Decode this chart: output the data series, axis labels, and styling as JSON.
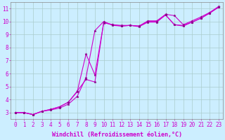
{
  "bg_color": "#cceeff",
  "grid_color": "#aacccc",
  "line_color": "#cc00cc",
  "marker_color": "#880088",
  "xlabel": "Windchill (Refroidissement éolien,°C)",
  "ylabel_ticks": [
    3,
    4,
    5,
    6,
    7,
    8,
    9,
    10,
    11
  ],
  "xlim": [
    -0.5,
    23.5
  ],
  "ylim": [
    2.5,
    11.5
  ],
  "xtick_labels": [
    "0",
    "1",
    "2",
    "3",
    "4",
    "5",
    "6",
    "7",
    "8",
    "9",
    "10",
    "11",
    "12",
    "13",
    "14",
    "15",
    "16",
    "17",
    "18",
    "19",
    "20",
    "21",
    "22",
    "23"
  ],
  "line1_x": [
    0,
    1,
    2,
    3,
    4,
    5,
    6,
    7,
    8,
    9,
    10,
    11,
    12,
    13,
    14,
    15,
    16,
    17,
    18,
    19,
    20,
    21,
    22,
    23
  ],
  "line1_y": [
    3.0,
    3.0,
    2.85,
    3.1,
    3.2,
    3.35,
    3.65,
    4.25,
    5.7,
    9.3,
    10.0,
    9.7,
    9.65,
    9.7,
    9.65,
    10.05,
    10.05,
    10.55,
    10.45,
    9.75,
    10.05,
    10.35,
    10.7,
    11.15
  ],
  "line2_x": [
    0,
    1,
    2,
    3,
    4,
    5,
    6,
    7,
    8,
    9,
    10,
    11,
    12,
    13,
    14,
    15,
    16,
    17,
    18,
    19,
    20,
    21,
    22,
    23
  ],
  "line2_y": [
    3.0,
    3.0,
    2.85,
    3.1,
    3.25,
    3.45,
    3.8,
    4.6,
    7.5,
    5.9,
    9.9,
    9.75,
    9.65,
    9.7,
    9.6,
    9.95,
    9.95,
    10.5,
    9.75,
    9.7,
    9.95,
    10.25,
    10.65,
    11.1
  ],
  "line3_x": [
    0,
    1,
    2,
    3,
    4,
    5,
    6,
    7,
    8,
    9,
    10,
    11,
    12,
    13,
    14,
    15,
    16,
    17,
    18,
    19,
    20,
    21,
    22,
    23
  ],
  "line3_y": [
    3.0,
    3.0,
    2.85,
    3.1,
    3.25,
    3.45,
    3.8,
    4.65,
    5.55,
    5.35,
    9.95,
    9.75,
    9.7,
    9.7,
    9.65,
    10.0,
    10.0,
    10.5,
    9.75,
    9.65,
    9.95,
    10.25,
    10.65,
    11.1
  ],
  "xlabel_fontsize": 6,
  "tick_fontsize": 5.5,
  "linewidth": 0.8,
  "markersize": 2.5
}
